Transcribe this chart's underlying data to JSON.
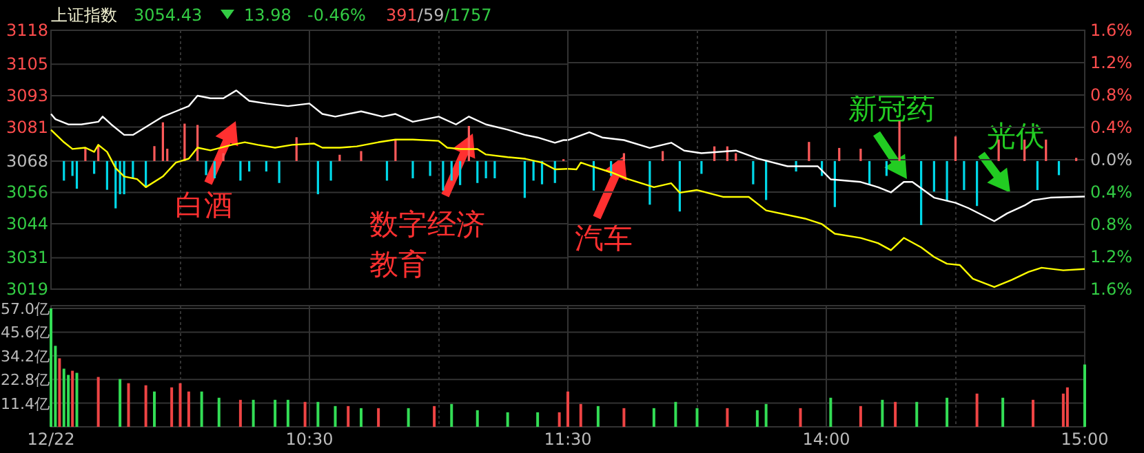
{
  "chart_data": [
    {
      "type": "line",
      "title": "上证指数",
      "annotations": [
        "3054.43",
        "13.98",
        "-0.46%",
        "391/59/1757",
        "白酒",
        "数字经济教育",
        "汽车",
        "新冠药",
        "光伏"
      ],
      "xlim": [
        9.5,
        11.5
      ],
      "xticks": [
        {
          "value": 9.5,
          "label": null
        },
        {
          "value": 10,
          "label": null
        },
        {
          "value": 10.5,
          "label": null
        },
        {
          "value": 11,
          "label": null
        },
        {
          "value": 11.5,
          "label": null
        }
      ],
      "ylim": [
        3019,
        3118
      ],
      "yticks": [
        3019,
        3031,
        3044,
        3056,
        3068,
        3081,
        3093,
        3105,
        3118
      ],
      "tick_labels": "y",
      "grid": true,
      "series": [
        {
          "type": "line",
          "color": "#ffffff",
          "x": [
            9.5,
            9.517,
            9.567,
            9.617,
            9.683,
            9.7,
            9.733,
            9.783,
            9.817,
            9.867,
            9.933,
            9.983,
            10.033,
            10.067,
            10.117,
            10.167,
            10.217,
            10.267,
            10.333,
            10.417,
            10.5,
            10.55,
            10.6,
            10.7,
            10.783,
            10.833,
            10.9,
            11,
            11.067,
            11.117,
            11.183,
            11.267,
            11.333,
            11.383,
            11.45,
            11.483,
            11.5
          ],
          "values": [
            3086,
            3084,
            3082,
            3082,
            3083,
            3085,
            3082,
            3078,
            3078,
            3081,
            3085,
            3087,
            3089,
            3093,
            3092,
            3092,
            3095,
            3091,
            3090,
            3089,
            3090,
            3086,
            3085,
            3087,
            3085,
            3086,
            3083,
            3085,
            3082,
            3085,
            3082,
            3080,
            3078,
            3077,
            3075,
            3076,
            3076
          ]
        },
        {
          "type": "line",
          "color": "#ffff00",
          "x": [
            9.5,
            9.55,
            9.583,
            9.633,
            9.667,
            9.683,
            9.717,
            9.75,
            9.783,
            9.833,
            9.867,
            9.933,
            9.983,
            10.033,
            10.067,
            10.117,
            10.2,
            10.25,
            10.3,
            10.367,
            10.433,
            10.517,
            10.55,
            10.617,
            10.683,
            10.767,
            10.833,
            10.9,
            11,
            11.033,
            11.083,
            11.15,
            11.183,
            11.267,
            11.333,
            11.4,
            11.45,
            11.5
          ],
          "values": [
            3079.9,
            3075.2,
            3072.6,
            3073.1,
            3071.5,
            3074.2,
            3071.5,
            3065.3,
            3062.1,
            3061.1,
            3058,
            3062.1,
            3067.4,
            3068.9,
            3073.1,
            3072.1,
            3074.2,
            3075.2,
            3074.2,
            3073.1,
            3074.2,
            3074.7,
            3073.1,
            3073.1,
            3073.6,
            3075.2,
            3076.2,
            3076.2,
            3075.7,
            3073.1,
            3072.6,
            3072.6,
            3070.5,
            3069.5,
            3068.9,
            3067.4,
            3064.8,
            3065
          ]
        },
        {
          "type": "bar",
          "color": "#ff5a5a",
          "x": [
            9.633,
            9.683,
            9.9,
            9.933,
            9.95,
            10.017,
            10.067,
            10.167,
            10.45,
            10.617,
            10.7,
            10.833,
            11.117,
            11.483
          ],
          "base": [
            3068,
            3068,
            3068,
            3068,
            3068,
            3068,
            3068,
            3068,
            3068,
            3068,
            3068,
            3068,
            3068,
            3068
          ],
          "values": [
            4.7,
            5.6,
            5.7,
            14.8,
            4.7,
            14.3,
            13.8,
            3.0,
            9.1,
            2.4,
            3.8,
            8.2,
            13.4,
            0.7
          ]
        },
        {
          "type": "bar",
          "color": "#00d8e8",
          "x": [
            9.55,
            9.583,
            9.6,
            9.667,
            9.717,
            9.75,
            9.767,
            9.783,
            9.817,
            9.867,
            10.1,
            10.133,
            10.233,
            10.267,
            10.333,
            10.383,
            10.533,
            10.583,
            10.8,
            10.9,
            10.967,
            11.017,
            11.05,
            11.083,
            11.15,
            11.183,
            11.217,
            11.333,
            11.367,
            11.4,
            11.45
          ],
          "base": [
            3068,
            3068,
            3068,
            3068,
            3068,
            3068,
            3068,
            3068,
            3068,
            3068,
            3068,
            3068,
            3068,
            3068,
            3068,
            3068,
            3068,
            3068,
            3068,
            3068,
            3068,
            3068,
            3068,
            3068,
            3068,
            3068,
            3068,
            3068,
            3068,
            3068,
            3068
          ],
          "values": [
            -7.5,
            -5.7,
            -10.6,
            -4.9,
            -11.0,
            -18.1,
            -12.7,
            -12.7,
            -6.6,
            -10.1,
            -5.4,
            -6.6,
            -7.5,
            -4.0,
            -4.0,
            -8.4,
            -12.7,
            -7.5,
            -7.5,
            -6.6,
            -5.7,
            -11.3,
            -7.5,
            -9.2,
            -8.4,
            -6.6,
            -6.6,
            -14.1,
            -7.5,
            -8.9,
            -8.4
          ]
        }
      ]
    },
    {
      "type": "line",
      "xlim": [
        13,
        15
      ],
      "xticks": [
        {
          "value": 13.5,
          "label": null
        },
        {
          "value": 14,
          "label": null
        },
        {
          "value": 14.5,
          "label": null
        },
        {
          "value": 15,
          "label": null
        }
      ],
      "ylim": [
        3019,
        3118
      ],
      "y2lim": [
        -1.6,
        1.6
      ],
      "y2ticks": [
        {
          "value": -1.6,
          "label": "1.6%"
        },
        {
          "value": -1.2,
          "label": "1.2%"
        },
        {
          "value": -0.8,
          "label": "0.8%"
        },
        {
          "value": -0.4,
          "label": "0.4%"
        },
        {
          "value": 0,
          "label": "0.0%"
        },
        {
          "value": 0.4,
          "label": "0.4%"
        },
        {
          "value": 0.8,
          "label": "0.8%"
        },
        {
          "value": 1.2,
          "label": "1.2%"
        },
        {
          "value": 1.6,
          "label": "1.6%"
        }
      ],
      "tick_labels": "y",
      "grid": true,
      "series": [
        {
          "type": "line",
          "color": "#ffffff",
          "x": [
            13,
            13.083,
            13.133,
            13.217,
            13.317,
            13.4,
            13.45,
            13.517,
            13.65,
            13.733,
            13.85,
            13.967,
            14.017,
            14.133,
            14.2,
            14.25,
            14.3,
            14.333,
            14.417,
            14.5,
            14.55,
            14.65,
            14.7,
            14.767,
            14.8,
            14.867,
            15
          ],
          "values": [
            3076,
            3079,
            3077,
            3076,
            3073,
            3075,
            3072,
            3071,
            3072,
            3069,
            3066,
            3066,
            3061,
            3060,
            3058,
            3056,
            3060,
            3060,
            3054,
            3052,
            3050,
            3045,
            3048,
            3051,
            3053,
            3054,
            3054.4
          ]
        },
        {
          "type": "line",
          "color": "#ffff00",
          "x": [
            13,
            13.033,
            13.05,
            13.083,
            13.167,
            13.233,
            13.333,
            13.4,
            13.433,
            13.5,
            13.6,
            13.7,
            13.767,
            13.917,
            13.983,
            14.033,
            14.133,
            14.2,
            14.25,
            14.3,
            14.367,
            14.417,
            14.467,
            14.517,
            14.567,
            14.65,
            14.717,
            14.783,
            14.833,
            14.917,
            15
          ],
          "values": [
            3065,
            3064.8,
            3067.4,
            3066.3,
            3063.7,
            3061.1,
            3058,
            3059.5,
            3055.9,
            3056.9,
            3054.3,
            3054.3,
            3049.1,
            3046,
            3043.9,
            3040.2,
            3038.6,
            3036.6,
            3033.9,
            3038.6,
            3035,
            3031.3,
            3028.7,
            3028.2,
            3023,
            3019.8,
            3022.5,
            3025.6,
            3027.2,
            3026.2,
            3026.7
          ]
        },
        {
          "type": "bar",
          "color": "#ff5a5a",
          "x": [
            13.217,
            13.367,
            13.567,
            13.617,
            13.65,
            13.933,
            14.05,
            14.133,
            14.283,
            14.5,
            14.667,
            14.767,
            14.85,
            14.967
          ],
          "base": [
            3068,
            3068,
            3068,
            3068,
            3068,
            3068,
            3068,
            3068,
            3068,
            3068,
            3068,
            3068,
            3068,
            3068
          ],
          "values": [
            3.0,
            3.8,
            5.6,
            5.6,
            3.0,
            7.3,
            5.0,
            4.7,
            15.3,
            9.4,
            8.2,
            8.2,
            8.2,
            1.2
          ]
        },
        {
          "type": "bar",
          "color": "#00d8e8",
          "x": [
            13.1,
            13.167,
            13.317,
            13.433,
            13.517,
            13.717,
            13.767,
            13.883,
            13.983,
            14.033,
            14.167,
            14.233,
            14.367,
            14.417,
            14.467,
            14.533,
            14.583,
            14.817,
            14.9
          ],
          "base": [
            3068,
            3068,
            3068,
            3068,
            3068,
            3068,
            3068,
            3068,
            3068,
            3068,
            3068,
            3068,
            3068,
            3068,
            3068,
            3068,
            3068,
            3068,
            3068
          ],
          "values": [
            -11.3,
            -5.7,
            -16.7,
            -19.3,
            -4.9,
            -8.9,
            -14.9,
            -4.0,
            -5.7,
            -17.6,
            -9.2,
            -5.7,
            -24.5,
            -11.7,
            -15.1,
            -11.1,
            -17.2,
            -11.1,
            -5.4
          ]
        }
      ]
    },
    {
      "type": "bar",
      "xlim": [
        9.5,
        11.5
      ],
      "xticks": [
        {
          "value": 9.5,
          "label": "12/22"
        },
        {
          "value": 10,
          "label": null
        },
        {
          "value": 10.5,
          "label": "10:30"
        },
        {
          "value": 11,
          "label": null
        },
        {
          "value": 11.5,
          "label": "11:30"
        }
      ],
      "ylim": [
        0,
        57
      ],
      "yticks": [
        {
          "value": 11.4,
          "label": "11.4亿"
        },
        {
          "value": 22.8,
          "label": "22.8亿"
        },
        {
          "value": 34.2,
          "label": "34.2亿"
        },
        {
          "value": 45.6,
          "label": "45.6亿"
        },
        {
          "value": 57,
          "label": "57.0亿"
        }
      ],
      "grid": true,
      "x": [
        9.5,
        9.517,
        9.533,
        9.55,
        9.567,
        9.583,
        9.6,
        9.683,
        9.767,
        9.8,
        9.867,
        9.9,
        9.967,
        10,
        10.033,
        10.083,
        10.15,
        10.233,
        10.283,
        10.367,
        10.417,
        10.483,
        10.533,
        10.6,
        10.65,
        10.7,
        10.767,
        10.883,
        10.983,
        11.05,
        11.15,
        11.267,
        11.383,
        11.467
      ],
      "values": [
        57,
        39,
        33,
        28,
        25,
        27,
        26,
        24,
        23,
        21,
        20,
        17,
        19,
        21,
        17,
        17,
        14,
        13,
        13,
        13,
        13,
        12,
        12,
        10,
        10,
        9,
        9,
        9,
        10,
        11,
        8,
        7,
        7,
        7
      ],
      "colors": [
        "#33dd55",
        "#33dd55",
        "#ee4444",
        "#33dd55",
        "#33dd55",
        "#ee4444",
        "#33dd55",
        "#ee4444",
        "#33dd55",
        "#ee4444",
        "#ee4444",
        "#33dd55",
        "#ee4444",
        "#ee4444",
        "#ee4444",
        "#33dd55",
        "#33dd55",
        "#ee4444",
        "#33dd55",
        "#33dd55",
        "#33dd55",
        "#ee4444",
        "#33dd55",
        "#33dd55",
        "#ee4444",
        "#33dd55",
        "#ee4444",
        "#33dd55",
        "#ee4444",
        "#33dd55",
        "#33dd55",
        "#33dd55",
        "#33dd55",
        "#ee4444"
      ]
    },
    {
      "type": "bar",
      "xlim": [
        13,
        15
      ],
      "xticks": [
        {
          "value": 13.5,
          "label": null
        },
        {
          "value": 14,
          "label": "14:00"
        },
        {
          "value": 14.5,
          "label": null
        },
        {
          "value": 15,
          "label": "15:00"
        }
      ],
      "ylim": [
        0,
        57
      ],
      "yticks": [
        {
          "value": 11.4,
          "label": null
        },
        {
          "value": 22.8,
          "label": null
        },
        {
          "value": 34.2,
          "label": null
        },
        {
          "value": 45.6,
          "label": null
        },
        {
          "value": 57,
          "label": null
        }
      ],
      "tick_labels": "x",
      "grid": true,
      "x": [
        13,
        13.05,
        13.117,
        13.217,
        13.333,
        13.417,
        13.5,
        13.617,
        13.733,
        13.767,
        13.9,
        14.017,
        14.133,
        14.217,
        14.267,
        14.35,
        14.467,
        14.583,
        14.683,
        14.8,
        14.917,
        14.933,
        15
      ],
      "values": [
        17,
        11,
        10,
        9,
        9,
        12,
        9,
        9,
        8,
        11,
        9,
        14,
        10,
        13,
        12,
        12,
        14,
        16,
        14,
        13,
        16,
        19,
        30
      ],
      "colors": [
        "#ee4444",
        "#ee4444",
        "#33dd55",
        "#ee4444",
        "#33dd55",
        "#33dd55",
        "#33dd55",
        "#ee4444",
        "#33dd55",
        "#33dd55",
        "#ee4444",
        "#33dd55",
        "#ee4444",
        "#33dd55",
        "#ee4444",
        "#33dd55",
        "#33dd55",
        "#ee4444",
        "#33dd55",
        "#ee4444",
        "#ee4444",
        "#ee4444",
        "#33dd55"
      ]
    }
  ]
}
